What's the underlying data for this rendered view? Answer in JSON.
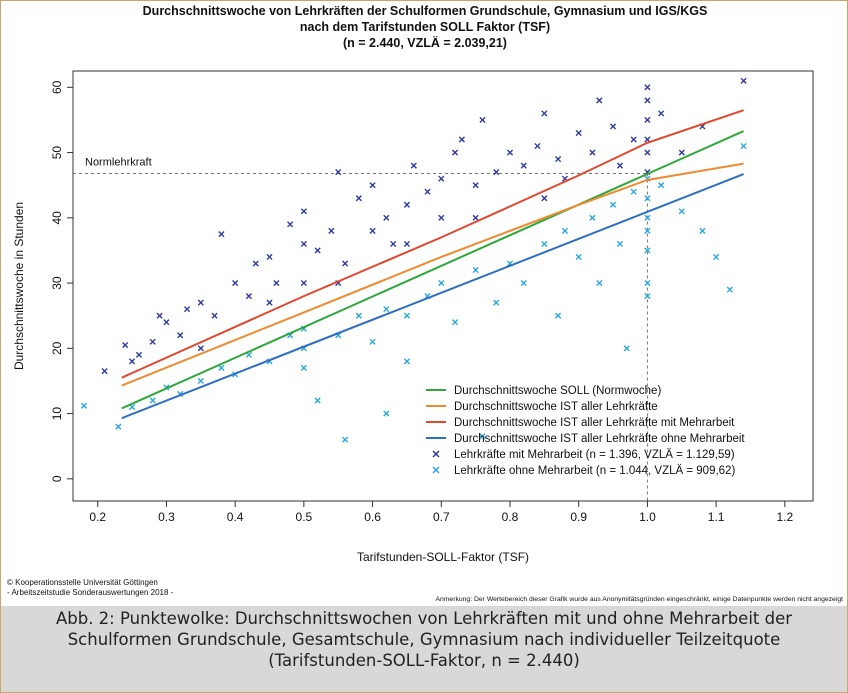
{
  "chart_data": {
    "type": "scatter",
    "title": [
      "Durchschnittswoche von Lehrkräften der Schulformen Grundschule, Gymnasium und IGS/KGS",
      "nach dem Tarifstunden SOLL Faktor (TSF)",
      "(n = 2.440, VZLÄ = 2.039,21)"
    ],
    "x_label": "Tarifstunden-SOLL-Faktor (TSF)",
    "y_label": "Durchschnittswoche in Stunden",
    "xlim": [
      0.164,
      1.241
    ],
    "ylim": [
      -3.4,
      62.5
    ],
    "xticks": [
      0.2,
      0.3,
      0.4,
      0.5,
      0.6,
      0.7,
      0.8,
      0.9,
      {
        "value": 1,
        "label": "1.0"
      },
      1.1,
      1.2
    ],
    "yticks": [
      0,
      10,
      20,
      30,
      40,
      50,
      60
    ],
    "reference": {
      "label": "Normlehrkraft",
      "x": 1,
      "y": 46.8
    },
    "legend": "bottom right",
    "series": [
      {
        "name": "Durchschnittswoche SOLL (Normwoche)",
        "type": "line",
        "color": "#2ea83a",
        "x": [
          0.235,
          1.14
        ],
        "values": [
          10.8,
          53.3
        ]
      },
      {
        "name": "Durchschnittswoche IST aller Lehrkräfte",
        "type": "line",
        "color": "#f08a30",
        "x": [
          0.235,
          0.5,
          0.7,
          0.9,
          1.0,
          1.14
        ],
        "values": [
          14.3,
          25.5,
          34,
          42,
          45.8,
          48.3
        ]
      },
      {
        "name": "Durchschnittswoche IST aller Lehrkräfte mit Mehrarbeit",
        "type": "line",
        "color": "#e2472e",
        "x": [
          0.235,
          0.5,
          0.7,
          0.9,
          1.0,
          1.14
        ],
        "values": [
          15.5,
          28,
          37,
          46.5,
          51.5,
          56.5
        ]
      },
      {
        "name": "Durchschnittswoche IST aller Lehrkräfte ohne Mehrarbeit",
        "type": "line",
        "color": "#2f6ec2",
        "x": [
          0.235,
          1.14
        ],
        "values": [
          9.3,
          46.7
        ]
      },
      {
        "name": "Lehrkräfte mit Mehrarbeit (n = 1.396, VZLÄ = 1.129,59)",
        "type": "scatter",
        "color": "#2c3b9c",
        "x": [
          0.24,
          0.25,
          0.26,
          0.28,
          0.29,
          0.3,
          0.32,
          0.33,
          0.35,
          0.37,
          0.38,
          0.4,
          0.42,
          0.43,
          0.45,
          0.46,
          0.48,
          0.5,
          0.5,
          0.5,
          0.52,
          0.54,
          0.55,
          0.56,
          0.58,
          0.6,
          0.6,
          0.62,
          0.63,
          0.65,
          0.66,
          0.68,
          0.7,
          0.7,
          0.72,
          0.73,
          0.75,
          0.76,
          0.78,
          0.8,
          0.82,
          0.84,
          0.85,
          0.87,
          0.88,
          0.9,
          0.92,
          0.93,
          0.95,
          0.96,
          0.98,
          1,
          1,
          1,
          1,
          1,
          1,
          1.02,
          1.05,
          1.08,
          1.14,
          0.35,
          0.45,
          0.55,
          0.65,
          0.75,
          0.85,
          0.21
        ],
        "values": [
          20.5,
          18,
          19,
          21,
          25,
          24,
          22,
          26,
          27,
          25,
          37.5,
          30,
          28,
          33,
          34,
          30,
          39,
          41,
          36,
          30,
          35,
          38,
          47,
          33,
          43,
          38,
          45,
          40,
          36,
          42,
          48,
          44,
          46,
          40,
          50,
          52,
          45,
          55,
          47,
          50,
          48,
          51,
          56,
          49,
          46,
          53,
          50,
          58,
          54,
          48,
          52,
          60,
          55,
          50,
          47,
          52,
          58,
          56,
          50,
          54,
          61,
          20,
          27,
          30,
          36,
          40,
          43,
          16.5
        ]
      },
      {
        "name": "Lehrkräfte ohne Mehrarbeit (n = 1.044, VZLÄ = 909,62)",
        "type": "scatter",
        "color": "#2aa6e0",
        "x": [
          0.18,
          0.23,
          0.25,
          0.28,
          0.3,
          0.32,
          0.35,
          0.38,
          0.4,
          0.42,
          0.45,
          0.48,
          0.5,
          0.5,
          0.5,
          0.52,
          0.55,
          0.58,
          0.6,
          0.62,
          0.65,
          0.65,
          0.68,
          0.7,
          0.72,
          0.75,
          0.78,
          0.8,
          0.82,
          0.85,
          0.87,
          0.88,
          0.9,
          0.92,
          0.93,
          0.95,
          0.96,
          0.97,
          0.98,
          1,
          1,
          1,
          1,
          1,
          1,
          1,
          1.02,
          1.05,
          1.08,
          1.1,
          1.12,
          1.14,
          0.56,
          0.76,
          0.62
        ],
        "values": [
          11.2,
          8,
          11,
          12,
          14,
          13,
          15,
          17,
          16,
          19,
          18,
          22,
          20,
          23,
          17,
          12,
          22,
          25,
          21,
          26,
          18,
          25,
          28,
          30,
          24,
          32,
          27,
          33,
          30,
          36,
          25,
          38,
          34,
          40,
          30,
          42,
          36,
          20,
          44,
          46,
          40,
          35,
          30,
          43,
          38,
          28,
          45,
          41,
          38,
          34,
          29,
          51,
          6,
          6.5,
          10
        ]
      }
    ],
    "copyright": [
      "© Kooperationsstelle Universität Göttingen",
      "- Arbeitszeitstudie Sonderauswertungen 2018 -"
    ],
    "note": "Anmerkung: Der Wertebereich dieser Grafik wurde aus Anonymitätsgründen eingeschränkt, einige Datenpunkte werden nicht angezeigt",
    "caption": "Abb. 2: Punktewolke: Durchschnittswochen von Lehrkräften mit und ohne Mehrarbeit der Schulformen Grundschule, Gesamtschule, Gymnasium nach individueller Teilzeitquote (Tarifstunden-SOLL-Faktor, n = 2.440)"
  }
}
